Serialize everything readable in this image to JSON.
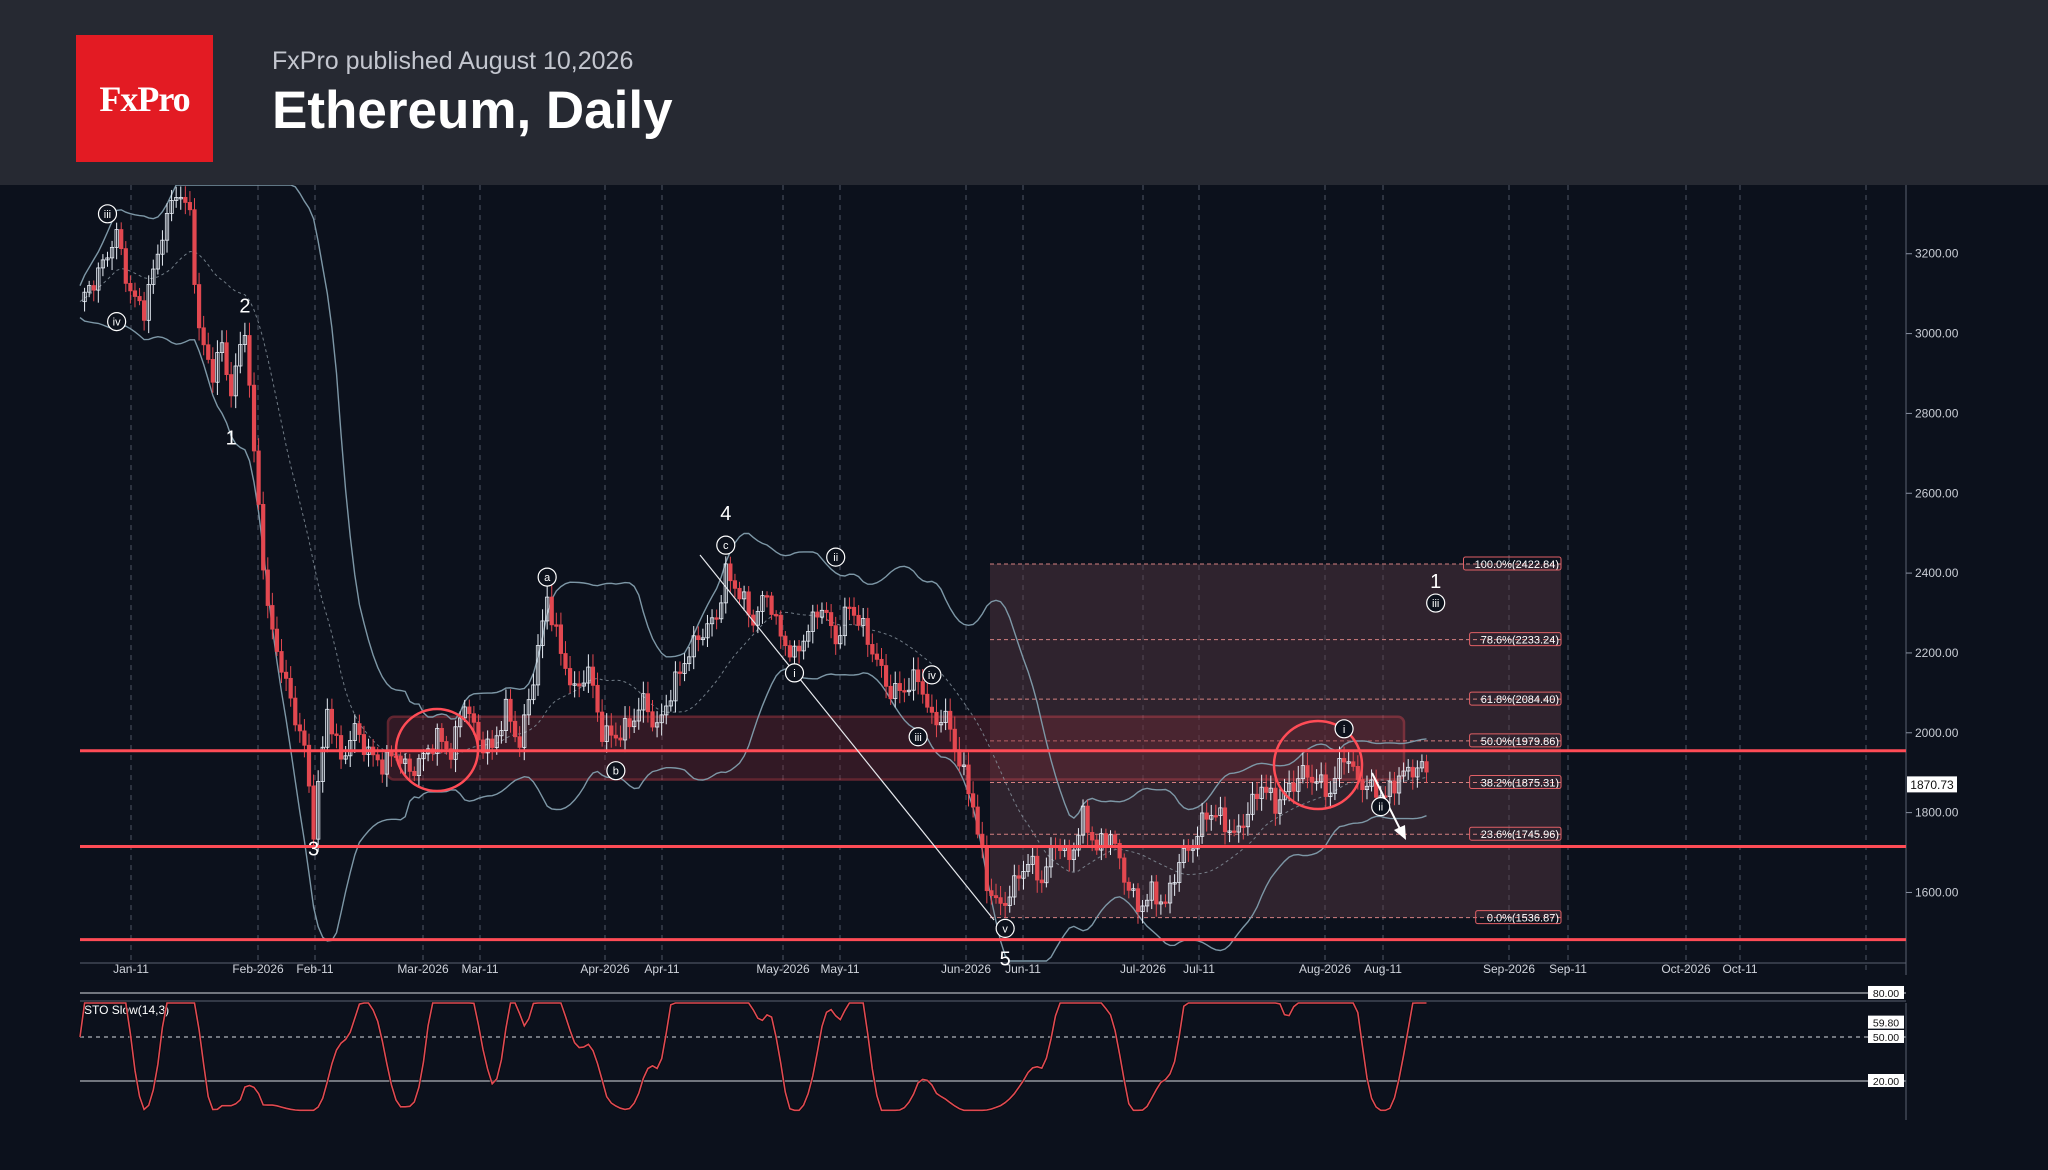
{
  "header": {
    "logo_text": "FxPro",
    "published": "FxPro published August 10,2026",
    "title": "Ethereum, Daily"
  },
  "colors": {
    "background": "#0c111c",
    "header": "#262932",
    "brand": "#e31b23",
    "bullish": "#e8eef6",
    "bearish": "#e34850",
    "level_line": "#ff4c56",
    "bollinger": "#7d97a6",
    "stochastic": "#e04a52"
  },
  "chart_data": [
    {
      "type": "candlestick",
      "instrument": "Ethereum",
      "timeframe": "Daily",
      "ylim": [
        1420,
        3350
      ],
      "y_ticks": [
        1600,
        1800,
        2000,
        2200,
        2400,
        2600,
        2800,
        3000,
        3200
      ],
      "y_tick_labels": [
        "1600.00",
        "1800.00",
        "2000.00",
        "2200.00",
        "2400.00",
        "2600.00",
        "2800.00",
        "3000.00",
        "3200.00"
      ],
      "x_labels": [
        "Jan-11",
        "Feb-2026",
        "Feb-11",
        "Mar-2026",
        "Mar-11",
        "Apr-2026",
        "Apr-11",
        "May-2026",
        "May-11",
        "Jun-2026",
        "Jun-11",
        "Jul-2026",
        "Jul-11",
        "Aug-2026",
        "Aug-11",
        "Sep-2026",
        "Sep-11",
        "Oct-2026",
        "Oct-11"
      ],
      "current_price": "1870.73",
      "grid": true,
      "price_path": [
        [
          0,
          3080
        ],
        [
          4,
          3150
        ],
        [
          8,
          3250
        ],
        [
          11,
          3100
        ],
        [
          14,
          3060
        ],
        [
          18,
          3250
        ],
        [
          21,
          3360
        ],
        [
          24,
          3300
        ],
        [
          26,
          3000
        ],
        [
          29,
          2900
        ],
        [
          31,
          2970
        ],
        [
          33,
          2850
        ],
        [
          36,
          3020
        ],
        [
          38,
          2700
        ],
        [
          41,
          2300
        ],
        [
          45,
          2120
        ],
        [
          49,
          1960
        ],
        [
          51,
          1760
        ],
        [
          54,
          2060
        ],
        [
          57,
          1930
        ],
        [
          60,
          2010
        ],
        [
          63,
          1950
        ],
        [
          66,
          1920
        ],
        [
          69,
          1950
        ],
        [
          72,
          1900
        ],
        [
          75,
          1940
        ],
        [
          78,
          1990
        ],
        [
          81,
          1950
        ],
        [
          84,
          2080
        ],
        [
          87,
          1980
        ],
        [
          90,
          1960
        ],
        [
          93,
          2060
        ],
        [
          96,
          1970
        ],
        [
          99,
          2140
        ],
        [
          102,
          2340
        ],
        [
          105,
          2200
        ],
        [
          108,
          2100
        ],
        [
          111,
          2160
        ],
        [
          114,
          2000
        ],
        [
          117,
          1990
        ],
        [
          120,
          2020
        ],
        [
          123,
          2080
        ],
        [
          126,
          2010
        ],
        [
          129,
          2100
        ],
        [
          132,
          2180
        ],
        [
          135,
          2240
        ],
        [
          139,
          2290
        ],
        [
          141,
          2400
        ],
        [
          144,
          2350
        ],
        [
          147,
          2280
        ],
        [
          150,
          2350
        ],
        [
          153,
          2240
        ],
        [
          156,
          2190
        ],
        [
          159,
          2260
        ],
        [
          162,
          2320
        ],
        [
          165,
          2230
        ],
        [
          168,
          2320
        ],
        [
          171,
          2260
        ],
        [
          174,
          2180
        ],
        [
          177,
          2100
        ],
        [
          180,
          2110
        ],
        [
          183,
          2140
        ],
        [
          186,
          2030
        ],
        [
          189,
          2040
        ],
        [
          192,
          1930
        ],
        [
          195,
          1820
        ],
        [
          198,
          1620
        ],
        [
          201,
          1560
        ],
        [
          204,
          1620
        ],
        [
          207,
          1680
        ],
        [
          210,
          1630
        ],
        [
          213,
          1730
        ],
        [
          216,
          1680
        ],
        [
          219,
          1790
        ],
        [
          222,
          1710
        ],
        [
          225,
          1750
        ],
        [
          228,
          1640
        ],
        [
          231,
          1560
        ],
        [
          234,
          1600
        ],
        [
          237,
          1570
        ],
        [
          240,
          1680
        ],
        [
          243,
          1720
        ],
        [
          246,
          1800
        ],
        [
          249,
          1790
        ],
        [
          252,
          1740
        ],
        [
          255,
          1800
        ],
        [
          258,
          1870
        ],
        [
          261,
          1820
        ],
        [
          264,
          1860
        ],
        [
          267,
          1900
        ],
        [
          270,
          1880
        ],
        [
          273,
          1850
        ],
        [
          276,
          1950
        ],
        [
          279,
          1880
        ],
        [
          282,
          1860
        ],
        [
          285,
          1840
        ],
        [
          288,
          1890
        ],
        [
          291,
          1910
        ],
        [
          294,
          1910
        ]
      ],
      "fibonacci": [
        {
          "label": "100.0%(2422.84)",
          "value": 2422.84
        },
        {
          "label": "78.6%(2233.24)",
          "value": 2233.24
        },
        {
          "label": "61.8%(2084.40)",
          "value": 2084.4
        },
        {
          "label": "50.0%(1979.86)",
          "value": 1979.86
        },
        {
          "label": "38.2%(1875.31)",
          "value": 1875.31
        },
        {
          "label": "23.6%(1745.96)",
          "value": 1745.96
        },
        {
          "label": "0.0%(1536.87)",
          "value": 1536.87
        }
      ],
      "horizontal_levels": [
        1955,
        1715,
        1482
      ],
      "zone": {
        "low": 1883,
        "high": 2040
      },
      "wave_labels": [
        {
          "text": "iii",
          "x": 6,
          "y": 3300,
          "circled": true
        },
        {
          "text": "iv",
          "x": 8,
          "y": 3030,
          "circled": true
        },
        {
          "text": "2",
          "x": 36,
          "y": 3070,
          "circled": false
        },
        {
          "text": "1",
          "x": 33,
          "y": 2740,
          "circled": false
        },
        {
          "text": "3",
          "x": 51,
          "y": 1710,
          "circled": false
        },
        {
          "text": "a",
          "x": 102,
          "y": 2390,
          "circled": true
        },
        {
          "text": "b",
          "x": 117,
          "y": 1905,
          "circled": true
        },
        {
          "text": "4",
          "x": 141,
          "y": 2550,
          "circled": false
        },
        {
          "text": "c",
          "x": 141,
          "y": 2470,
          "circled": true
        },
        {
          "text": "i",
          "x": 156,
          "y": 2150,
          "circled": true
        },
        {
          "text": "ii",
          "x": 165,
          "y": 2440,
          "circled": true
        },
        {
          "text": "iv",
          "x": 186,
          "y": 2145,
          "circled": true
        },
        {
          "text": "iii",
          "x": 183,
          "y": 1990,
          "circled": true
        },
        {
          "text": "v",
          "x": 202,
          "y": 1510,
          "circled": true
        },
        {
          "text": "5",
          "x": 202,
          "y": 1435,
          "circled": false
        },
        {
          "text": "i",
          "x": 276,
          "y": 2010,
          "circled": true
        },
        {
          "text": "ii",
          "x": 284,
          "y": 1815,
          "circled": true
        },
        {
          "text": "1",
          "x": 296,
          "y": 2380,
          "circled": false
        },
        {
          "text": "iii",
          "x": 296,
          "y": 2325,
          "circled": true
        }
      ]
    },
    {
      "type": "line",
      "name": "STO Slow(14,3)",
      "ylim": [
        0,
        100
      ],
      "y_tick_labels": [
        "80.00",
        "59.80",
        "50.00",
        "20.00"
      ],
      "reference_levels": [
        80,
        50,
        20
      ],
      "last_value": 59.8
    }
  ]
}
